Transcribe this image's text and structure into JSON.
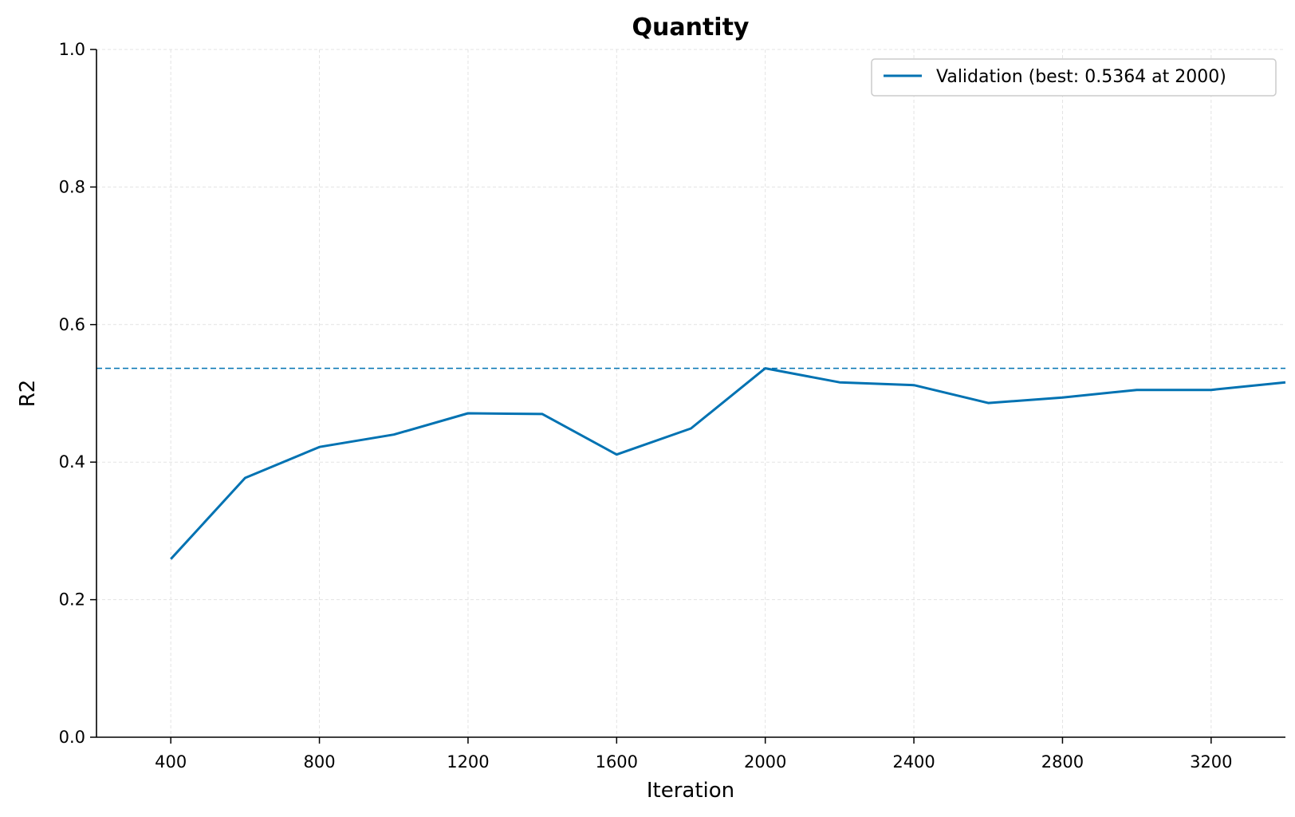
{
  "chart_data": {
    "type": "line",
    "title": "Quantity",
    "xlabel": "Iteration",
    "ylabel": "R2",
    "xlim": [
      200,
      3400
    ],
    "ylim": [
      0.0,
      1.0
    ],
    "xticks": [
      400,
      800,
      1200,
      1600,
      2000,
      2400,
      2800,
      3200
    ],
    "yticks": [
      0.0,
      0.2,
      0.4,
      0.6,
      0.8,
      1.0
    ],
    "ytick_labels": [
      "0.0",
      "0.2",
      "0.4",
      "0.6",
      "0.8",
      "1.0"
    ],
    "grid": true,
    "legend_position": "top-right",
    "series": [
      {
        "name": "Validation (best: 0.5364 at 2000)",
        "color": "#0072B2",
        "x": [
          400,
          600,
          800,
          1000,
          1200,
          1400,
          1600,
          1800,
          2000,
          2200,
          2400,
          2600,
          2800,
          3000,
          3200,
          3400
        ],
        "values": [
          0.259,
          0.377,
          0.422,
          0.44,
          0.471,
          0.47,
          0.411,
          0.449,
          0.5364,
          0.516,
          0.512,
          0.486,
          0.494,
          0.505,
          0.505,
          0.516
        ]
      }
    ],
    "reference_line": {
      "y": 0.5364,
      "color": "#0072B2",
      "style": "dashed"
    }
  }
}
